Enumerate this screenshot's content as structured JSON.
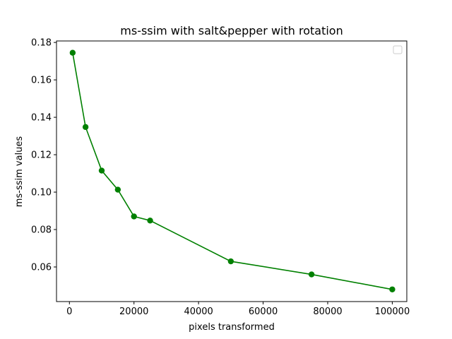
{
  "chart_data": {
    "type": "line",
    "title": "ms-ssim with salt&pepper with rotation",
    "xlabel": "pixels transformed",
    "ylabel": "ms-ssim values",
    "xlim": [
      -4000,
      104500
    ],
    "ylim": [
      0.0415,
      0.1808
    ],
    "xticks": [
      0,
      20000,
      40000,
      60000,
      80000,
      100000
    ],
    "xtick_labels": [
      "0",
      "20000",
      "40000",
      "60000",
      "80000",
      "100000"
    ],
    "yticks": [
      0.06,
      0.08,
      0.1,
      0.12,
      0.14,
      0.16,
      0.18
    ],
    "ytick_labels": [
      "0.06",
      "0.08",
      "0.10",
      "0.12",
      "0.14",
      "0.16",
      "0.18"
    ],
    "grid": false,
    "legend": {
      "placement": "top-right",
      "entries": []
    },
    "series": [
      {
        "color": "#008000",
        "marker": "circle",
        "x": [
          1000,
          5000,
          10000,
          15000,
          20000,
          25000,
          50000,
          75000,
          100000
        ],
        "y": [
          0.1745,
          0.1348,
          0.1115,
          0.1013,
          0.087,
          0.0848,
          0.063,
          0.056,
          0.048
        ]
      }
    ]
  }
}
